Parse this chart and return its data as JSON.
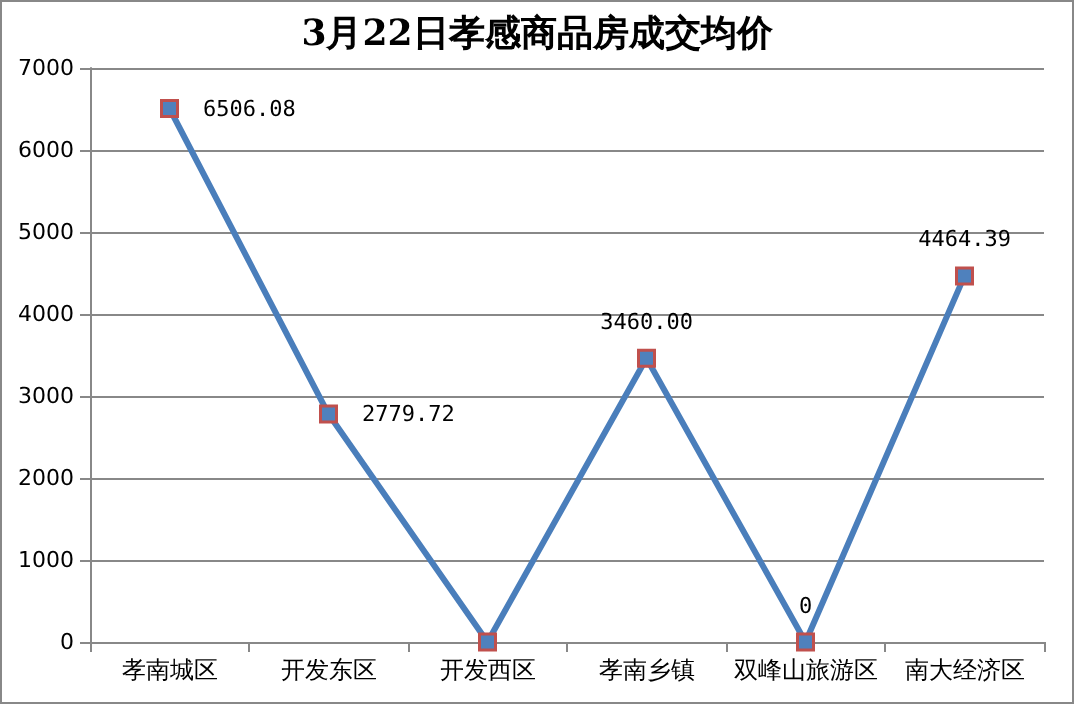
{
  "chart_data": {
    "type": "line",
    "title": "3月22日孝感商品房成交均价",
    "categories": [
      "孝南城区",
      "开发东区",
      "开发西区",
      "孝南乡镇",
      "双峰山旅游区",
      "南大经济区"
    ],
    "values": [
      6506.08,
      2779.72,
      0,
      3460.0,
      0,
      4464.39
    ],
    "value_labels": [
      "6506.08",
      "2779.72",
      null,
      "3460.00",
      "0",
      "4464.39"
    ],
    "color": "#4a7ebb",
    "marker": "square",
    "line_style": "solid",
    "ylim": [
      0,
      7000
    ],
    "yticks": [
      0,
      1000,
      2000,
      3000,
      4000,
      5000,
      6000,
      7000
    ],
    "grid": "y"
  }
}
